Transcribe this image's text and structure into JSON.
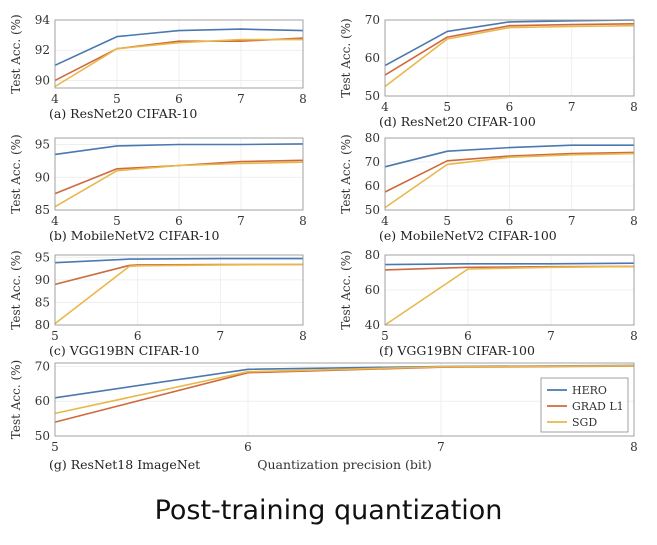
{
  "caption": "Post-training quantization",
  "colors": {
    "HERO": "#4a78b0",
    "GRAD L1": "#cf6a3d",
    "SGD": "#e8b84a"
  },
  "legend": {
    "placement": "inside-bottom-right",
    "entries": [
      "HERO",
      "GRAD L1",
      "SGD"
    ]
  },
  "chart_data": [
    {
      "type": "line",
      "title": "(a) ResNet20 CIFAR-10",
      "ylabel": "Test Acc. (%)",
      "x": [
        4,
        5,
        6,
        7,
        8
      ],
      "xticks": [
        "4",
        "5",
        "6",
        "7",
        "8"
      ],
      "ylim": [
        89.5,
        94
      ],
      "yticks": [
        90,
        92,
        94
      ],
      "ytick_labels": [
        "90",
        "92",
        "94"
      ],
      "grid": true,
      "series": [
        {
          "name": "HERO",
          "values": [
            91.0,
            92.9,
            93.3,
            93.4,
            93.3
          ]
        },
        {
          "name": "GRAD L1",
          "values": [
            90.0,
            92.1,
            92.6,
            92.6,
            92.8
          ]
        },
        {
          "name": "SGD",
          "values": [
            89.6,
            92.1,
            92.5,
            92.7,
            92.7
          ]
        }
      ]
    },
    {
      "type": "line",
      "title": "(d) ResNet20 CIFAR-100",
      "ylabel": "Test Acc. (%)",
      "x": [
        4,
        5,
        6,
        7,
        8
      ],
      "xticks": [
        "4",
        "5",
        "6",
        "7",
        "8"
      ],
      "ylim": [
        50,
        70
      ],
      "yticks": [
        50,
        60,
        70
      ],
      "ytick_labels": [
        "50",
        "60",
        "70"
      ],
      "grid": true,
      "series": [
        {
          "name": "HERO",
          "values": [
            58,
            67,
            69.5,
            69.8,
            70
          ]
        },
        {
          "name": "GRAD L1",
          "values": [
            55.5,
            65.5,
            68.5,
            68.8,
            69
          ]
        },
        {
          "name": "SGD",
          "values": [
            52.5,
            65,
            68,
            68.3,
            68.5
          ]
        }
      ]
    },
    {
      "type": "line",
      "title": "(b) MobileNetV2 CIFAR-10",
      "ylabel": "Test Acc. (%)",
      "x": [
        4,
        5,
        6,
        7,
        8
      ],
      "xticks": [
        "4",
        "5",
        "6",
        "7",
        "8"
      ],
      "ylim": [
        85,
        96
      ],
      "yticks": [
        85,
        90,
        95
      ],
      "ytick_labels": [
        "85",
        "90",
        "95"
      ],
      "grid": true,
      "series": [
        {
          "name": "HERO",
          "values": [
            93.5,
            94.8,
            95,
            95,
            95.1
          ]
        },
        {
          "name": "GRAD L1",
          "values": [
            87.5,
            91.3,
            91.8,
            92.4,
            92.6
          ]
        },
        {
          "name": "SGD",
          "values": [
            85.5,
            91,
            91.8,
            92.1,
            92.3
          ]
        }
      ]
    },
    {
      "type": "line",
      "title": "(e) MobileNetV2 CIFAR-100",
      "ylabel": "Test Acc. (%)",
      "x": [
        4,
        5,
        6,
        7,
        8
      ],
      "xticks": [
        "4",
        "5",
        "6",
        "7",
        "8"
      ],
      "ylim": [
        50,
        80
      ],
      "yticks": [
        50,
        60,
        70,
        80
      ],
      "ytick_labels": [
        "50",
        "60",
        "70",
        "80"
      ],
      "grid": true,
      "series": [
        {
          "name": "HERO",
          "values": [
            68,
            74.5,
            76,
            77,
            77
          ]
        },
        {
          "name": "GRAD L1",
          "values": [
            57.5,
            70.5,
            72.5,
            73.5,
            74
          ]
        },
        {
          "name": "SGD",
          "values": [
            51,
            69,
            72,
            73,
            73.5
          ]
        }
      ]
    },
    {
      "type": "line",
      "title": "(c) VGG19BN CIFAR-10",
      "ylabel": "Test Acc. (%)",
      "x": [
        5,
        5.9,
        6,
        7,
        8
      ],
      "xticks": [
        "5",
        "6",
        "7",
        "8"
      ],
      "xlim": [
        5,
        8
      ],
      "ylim": [
        80,
        95.5
      ],
      "yticks": [
        80,
        85,
        90,
        95
      ],
      "ytick_labels": [
        "80",
        "85",
        "90",
        "95"
      ],
      "grid": true,
      "series": [
        {
          "name": "HERO",
          "values": [
            93.8,
            94.6,
            94.6,
            94.7,
            94.7
          ]
        },
        {
          "name": "GRAD L1",
          "values": [
            89,
            93.2,
            93.3,
            93.4,
            93.4
          ]
        },
        {
          "name": "SGD",
          "values": [
            80.3,
            93,
            93.1,
            93.3,
            93.4
          ]
        }
      ]
    },
    {
      "type": "line",
      "title": "(f) VGG19BN CIFAR-100",
      "ylabel": "Test Acc. (%)",
      "x": [
        5,
        6,
        7,
        8
      ],
      "xticks": [
        "5",
        "6",
        "7",
        "8"
      ],
      "ylim": [
        40,
        80
      ],
      "yticks": [
        40,
        60,
        80
      ],
      "ytick_labels": [
        "40",
        "60",
        "80"
      ],
      "grid": true,
      "series": [
        {
          "name": "HERO",
          "values": [
            74.5,
            75,
            75,
            75.3
          ]
        },
        {
          "name": "GRAD L1",
          "values": [
            71.5,
            73,
            73.3,
            73.5
          ]
        },
        {
          "name": "SGD",
          "values": [
            40,
            72,
            73,
            73.5
          ]
        }
      ]
    },
    {
      "type": "line",
      "title": "(g) ResNet18 ImageNet",
      "ylabel": "Test Acc. (%)",
      "xlabel": "Quantization precision (bit)",
      "x": [
        5,
        6,
        7,
        8
      ],
      "xticks": [
        "5",
        "6",
        "7",
        "8"
      ],
      "ylim": [
        50,
        71
      ],
      "yticks": [
        50,
        60,
        70
      ],
      "ytick_labels": [
        "50",
        "60",
        "70"
      ],
      "grid": true,
      "series": [
        {
          "name": "HERO",
          "values": [
            61,
            69.2,
            70,
            70.3
          ]
        },
        {
          "name": "GRAD L1",
          "values": [
            54,
            68.2,
            69.8,
            70.1
          ]
        },
        {
          "name": "SGD",
          "values": [
            56.5,
            68.5,
            69.9,
            70.2
          ]
        }
      ]
    }
  ]
}
